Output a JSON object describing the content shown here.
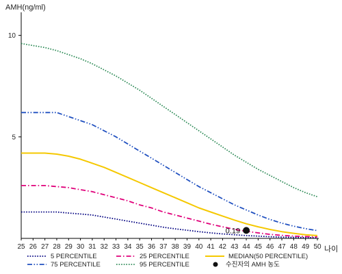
{
  "chart_data": {
    "type": "line",
    "ylabel": "AMH(ng/ml)",
    "xlabel": "나이",
    "xlim": [
      25,
      50
    ],
    "ylim": [
      0,
      11
    ],
    "x": [
      25,
      26,
      27,
      28,
      29,
      30,
      31,
      32,
      33,
      34,
      35,
      36,
      37,
      38,
      39,
      40,
      41,
      42,
      43,
      44,
      45,
      46,
      47,
      48,
      49,
      50
    ],
    "y_ticks": [
      5,
      10
    ],
    "series": [
      {
        "name": "5 PERCENTILE",
        "color": "#000080",
        "dash": "dot",
        "values": [
          1.3,
          1.3,
          1.3,
          1.3,
          1.25,
          1.2,
          1.15,
          1.05,
          0.95,
          0.85,
          0.75,
          0.65,
          0.55,
          0.47,
          0.4,
          0.33,
          0.27,
          0.22,
          0.18,
          0.14,
          0.11,
          0.08,
          0.06,
          0.05,
          0.04,
          0.03
        ]
      },
      {
        "name": "25 PERCENTILE",
        "color": "#e0007a",
        "dash": "dash-dot",
        "values": [
          2.6,
          2.6,
          2.6,
          2.55,
          2.5,
          2.4,
          2.3,
          2.15,
          2.0,
          1.85,
          1.65,
          1.5,
          1.3,
          1.15,
          1.0,
          0.85,
          0.7,
          0.57,
          0.45,
          0.35,
          0.27,
          0.2,
          0.15,
          0.11,
          0.09,
          0.07
        ]
      },
      {
        "name": "MEDIAN(50 PERCENTILE)",
        "color": "#f5c800",
        "dash": "solid",
        "values": [
          4.2,
          4.2,
          4.2,
          4.15,
          4.05,
          3.9,
          3.7,
          3.5,
          3.25,
          3.0,
          2.75,
          2.5,
          2.25,
          2.0,
          1.75,
          1.5,
          1.3,
          1.1,
          0.9,
          0.72,
          0.57,
          0.44,
          0.33,
          0.25,
          0.18,
          0.14
        ]
      },
      {
        "name": "75 PERCENTILE",
        "color": "#2050c0",
        "dash": "dash-dot-dot",
        "values": [
          6.2,
          6.2,
          6.2,
          6.2,
          6.0,
          5.8,
          5.6,
          5.3,
          5.0,
          4.65,
          4.3,
          3.95,
          3.6,
          3.25,
          2.9,
          2.55,
          2.25,
          1.95,
          1.65,
          1.4,
          1.15,
          0.93,
          0.75,
          0.6,
          0.48,
          0.38
        ]
      },
      {
        "name": "95 PERCENTILE",
        "color": "#2e8b57",
        "dash": "dot",
        "values": [
          9.6,
          9.5,
          9.4,
          9.25,
          9.05,
          8.85,
          8.6,
          8.3,
          8.0,
          7.65,
          7.3,
          6.9,
          6.5,
          6.1,
          5.7,
          5.3,
          4.9,
          4.5,
          4.1,
          3.75,
          3.4,
          3.1,
          2.8,
          2.5,
          2.25,
          2.05
        ]
      }
    ],
    "patient": {
      "name": "수진자의 AMH 농도",
      "x": 44,
      "y": 0.19,
      "label": "0.19"
    },
    "legend_placement": "bottom",
    "grid": false
  }
}
